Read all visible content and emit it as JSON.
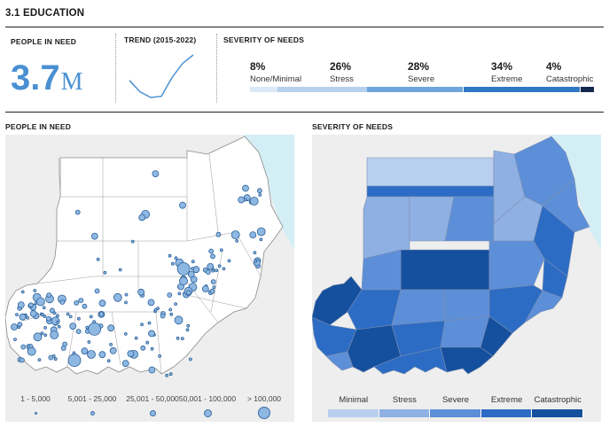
{
  "header": {
    "section_title": "3.1 EDUCATION"
  },
  "pin": {
    "label": "PEOPLE IN NEED",
    "value": "3.7",
    "unit": "M",
    "color": "#4a90d2"
  },
  "trend": {
    "label": "TREND (2015-2022)",
    "points": [
      4,
      2,
      1,
      1.2,
      4.5,
      7,
      8.5
    ]
  },
  "severity": {
    "label": "SEVERITY OF NEEDS",
    "items": [
      {
        "pct": "8%",
        "name": "None/Minimal",
        "share": 8,
        "color": "#dbe8f6"
      },
      {
        "pct": "26%",
        "name": "Stress",
        "share": 26,
        "color": "#b5d1ec"
      },
      {
        "pct": "28%",
        "name": "Severe",
        "share": 28,
        "color": "#6fa6db"
      },
      {
        "pct": "34%",
        "name": "Extreme",
        "share": 34,
        "color": "#2f78c4"
      },
      {
        "pct": "4%",
        "name": "Catastrophic",
        "share": 4,
        "color": "#13294b"
      }
    ]
  },
  "map_pin": {
    "title": "PEOPLE IN NEED",
    "legend": [
      {
        "label": "1 - 5,000"
      },
      {
        "label": "5,001 - 25,000"
      },
      {
        "label": "25,001 - 50,000"
      },
      {
        "label": "50,001 - 100,000"
      },
      {
        "label": "> 100,000"
      }
    ],
    "bubble_fill": "#8eb8e2",
    "bubble_stroke": "#2b5f9a"
  },
  "map_severity": {
    "title": "SEVERITY OF NEEDS",
    "legend": [
      {
        "label": "Minimal",
        "color": "#b9cfee"
      },
      {
        "label": "Stress",
        "color": "#8fb0e3"
      },
      {
        "label": "Severe",
        "color": "#5d8fd8"
      },
      {
        "label": "Extreme",
        "color": "#2d6cc4"
      },
      {
        "label": "Catastrophic",
        "color": "#15509e"
      }
    ],
    "sea_color": "#d4eef5",
    "land_bg": "#e6e6e6"
  }
}
